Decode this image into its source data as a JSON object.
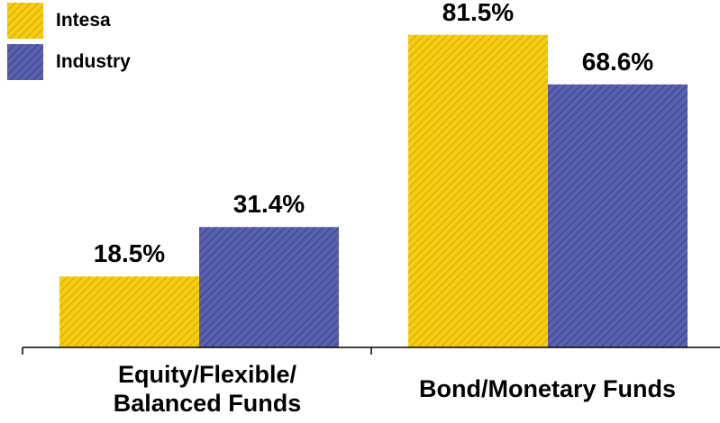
{
  "chart_data": {
    "type": "bar",
    "categories": [
      "Equity/Flexible/ Balanced Funds",
      "Bond/Monetary Funds"
    ],
    "category_lines": [
      [
        "Equity/Flexible/",
        "Balanced Funds"
      ],
      [
        "Bond/Monetary Funds"
      ]
    ],
    "series": [
      {
        "name": "Intesa",
        "values": [
          18.5,
          81.5
        ],
        "labels": [
          "18.5%",
          "81.5%"
        ],
        "color": "#f2c200"
      },
      {
        "name": "Industry",
        "values": [
          31.4,
          68.6
        ],
        "labels": [
          "31.4%",
          "68.6%"
        ],
        "color": "#4e55a3"
      }
    ],
    "ylim": [
      0,
      100
    ],
    "grid": false,
    "legend": "top-left",
    "title": "",
    "xlabel": "",
    "ylabel": ""
  }
}
